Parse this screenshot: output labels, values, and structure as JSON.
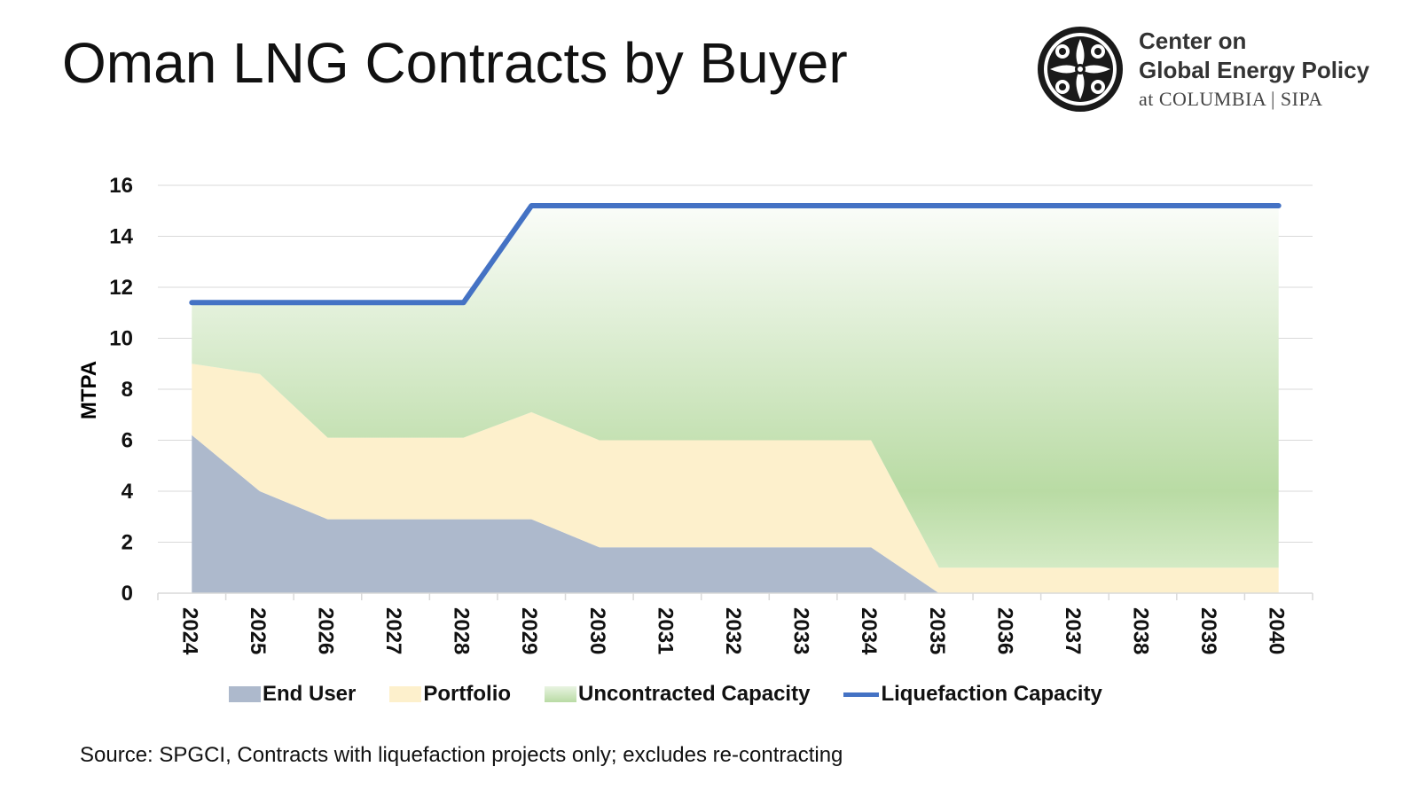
{
  "title": "Oman LNG Contracts by Buyer",
  "logo": {
    "line1": "Center on",
    "line2": "Global Energy Policy",
    "line3": "at COLUMBIA | SIPA",
    "icon": "columbia-emblem-icon"
  },
  "source": "Source: SPGCI, Contracts with liquefaction projects only; excludes re-contracting",
  "colors": {
    "end_user": "#adb9cc",
    "portfolio": "#fdf0cc",
    "uncontracted_top": "#ffffff",
    "uncontracted_bottom": "#b9dba4",
    "liquefaction": "#4472c4",
    "grid": "#d9d9d9"
  },
  "chart_data": {
    "type": "area",
    "x": [
      "2024",
      "2025",
      "2026",
      "2027",
      "2028",
      "2029",
      "2030",
      "2031",
      "2032",
      "2033",
      "2034",
      "2035",
      "2036",
      "2037",
      "2038",
      "2039",
      "2040"
    ],
    "ylabel": "MTPA",
    "xlabel": "",
    "ylim": [
      0,
      16
    ],
    "yticks": [
      0,
      2,
      4,
      6,
      8,
      10,
      12,
      14,
      16
    ],
    "grid": true,
    "legend_position": "bottom",
    "stacked": true,
    "series": [
      {
        "name": "End User",
        "type": "area",
        "values": [
          6.2,
          4.0,
          2.9,
          2.9,
          2.9,
          2.9,
          1.8,
          1.8,
          1.8,
          1.8,
          1.8,
          0,
          0,
          0,
          0,
          0,
          0
        ]
      },
      {
        "name": "Portfolio",
        "type": "area",
        "values": [
          2.8,
          4.6,
          3.2,
          3.2,
          3.2,
          4.2,
          4.2,
          4.2,
          4.2,
          4.2,
          4.2,
          1.0,
          1.0,
          1.0,
          1.0,
          1.0,
          1.0
        ]
      },
      {
        "name": "Uncontracted Capacity",
        "type": "area",
        "values": [
          2.4,
          2.8,
          5.3,
          5.3,
          5.3,
          8.1,
          9.2,
          9.2,
          9.2,
          9.2,
          9.2,
          14.2,
          14.2,
          14.2,
          14.2,
          14.2,
          14.2
        ]
      },
      {
        "name": "Liquefaction Capacity",
        "type": "line",
        "values": [
          11.4,
          11.4,
          11.4,
          11.4,
          11.4,
          15.2,
          15.2,
          15.2,
          15.2,
          15.2,
          15.2,
          15.2,
          15.2,
          15.2,
          15.2,
          15.2,
          15.2
        ]
      }
    ]
  }
}
